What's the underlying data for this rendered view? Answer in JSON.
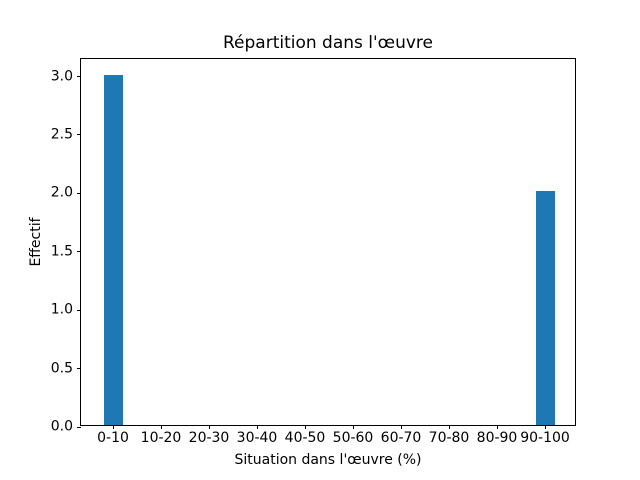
{
  "chart_data": {
    "type": "bar",
    "title": "Répartition dans l'œuvre",
    "xlabel": "Situation dans l'œuvre (%)",
    "ylabel": "Effectif",
    "categories": [
      "0-10",
      "10-20",
      "20-30",
      "30-40",
      "40-50",
      "50-60",
      "60-70",
      "70-80",
      "80-90",
      "90-100"
    ],
    "values": [
      3,
      0,
      0,
      0,
      0,
      0,
      0,
      0,
      0,
      2
    ],
    "yticks": [
      0.0,
      0.5,
      1.0,
      1.5,
      2.0,
      2.5,
      3.0
    ],
    "ytick_labels": [
      "0.0",
      "0.5",
      "1.0",
      "1.5",
      "2.0",
      "2.5",
      "3.0"
    ],
    "ylim": [
      0,
      3.15
    ],
    "bar_color": "#1f77b4",
    "text_color": "#000000",
    "background_color": "#ffffff",
    "grid": false,
    "legend": null
  }
}
